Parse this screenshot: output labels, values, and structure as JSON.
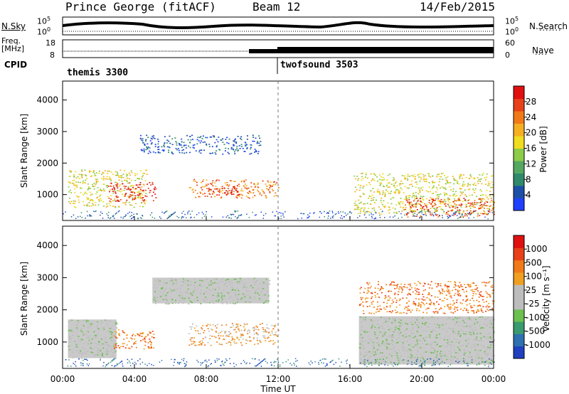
{
  "header": {
    "station": "Prince George (fitACF)",
    "beam": "Beam 12",
    "date": "14/Feb/2015"
  },
  "side_labels": {
    "nsky": "N.Sky",
    "freq_line1": "Freq.",
    "freq_line2": "[MHz]",
    "cpid": "CPID",
    "nsearch": "N.Search",
    "nave": "Nave"
  },
  "strip_ticks": {
    "noise_left_top": "10^5",
    "noise_left_bottom": "10^0",
    "noise_right_top": "10^5",
    "noise_right_bottom": "10^0",
    "freq_left_top": "18",
    "freq_left_bottom": "8",
    "nave_right_top": "60",
    "nave_right_bottom": "0"
  },
  "cpid_labels": {
    "first": "themis 3300",
    "second": "twofsound 3503"
  },
  "chart_data": [
    {
      "type": "heatmap",
      "panel": "power",
      "ylabel": "Slant Range [km]",
      "ylim": [
        180,
        4600
      ],
      "yticks": [
        "1000",
        "2000",
        "3000",
        "4000"
      ],
      "xlim_hours": [
        0,
        24
      ],
      "colorbar_label": "Power [dB]",
      "colorbar_ticks": [
        "28",
        "24",
        "20",
        "16",
        "12",
        "8",
        "4"
      ],
      "colors": [
        "#2040ff",
        "#1c4fa8",
        "#2e8a6a",
        "#55a860",
        "#8ccc48",
        "#f0dc20",
        "#f4b020",
        "#f07a18",
        "#e84018",
        "#e01010"
      ],
      "echo_regions": [
        {
          "t0": 0.3,
          "t1": 4.7,
          "r0": 600,
          "r1": 1800,
          "level": 5
        },
        {
          "t0": 2.5,
          "t1": 5.2,
          "r0": 800,
          "r1": 1400,
          "level": 9
        },
        {
          "t0": 4.3,
          "t1": 11.0,
          "r0": 2300,
          "r1": 2900,
          "level": 1
        },
        {
          "t0": 7.0,
          "t1": 12.0,
          "r0": 900,
          "r1": 1500,
          "level": 7
        },
        {
          "t0": 8.0,
          "t1": 10.0,
          "r0": 1000,
          "r1": 1300,
          "level": 9
        },
        {
          "t0": 16.2,
          "t1": 24.0,
          "r0": 400,
          "r1": 1700,
          "level": 5
        },
        {
          "t0": 19.0,
          "t1": 24.0,
          "r0": 300,
          "r1": 900,
          "level": 8
        }
      ]
    },
    {
      "type": "heatmap",
      "panel": "velocity",
      "ylabel": "Slant Range [km]",
      "ylim": [
        180,
        4600
      ],
      "yticks": [
        "1000",
        "2000",
        "3000",
        "4000"
      ],
      "xlim_hours": [
        0,
        24
      ],
      "xticks": [
        "00:00",
        "04:00",
        "08:00",
        "12:00",
        "16:00",
        "20:00",
        "00:00"
      ],
      "xlabel": "Time UT",
      "colorbar_label": "Velocity [m s⁻¹]",
      "colorbar_ticks": [
        "1000",
        "500",
        "100",
        "25",
        "-25",
        "-100",
        "-500",
        "-1000"
      ],
      "colors": [
        "#2040c0",
        "#2e70b0",
        "#3a9a70",
        "#6cc050",
        "#bdbdbd",
        "#bdbdbd",
        "#f0a020",
        "#f07a18",
        "#e84018",
        "#e01010"
      ],
      "ground_color": "#c0c0c0",
      "echo_regions": [
        {
          "t0": 0.3,
          "t1": 3.0,
          "r0": 500,
          "r1": 1700,
          "level": 4
        },
        {
          "t0": 2.8,
          "t1": 5.1,
          "r0": 800,
          "r1": 1400,
          "level": 7
        },
        {
          "t0": 5.0,
          "t1": 11.5,
          "r0": 2200,
          "r1": 3000,
          "level": 4
        },
        {
          "t0": 7.0,
          "t1": 12.0,
          "r0": 900,
          "r1": 1600,
          "level": 6
        },
        {
          "t0": 16.5,
          "t1": 24.0,
          "r0": 300,
          "r1": 1800,
          "level": 4
        },
        {
          "t0": 16.5,
          "t1": 24.0,
          "r0": 1900,
          "r1": 2900,
          "level": 7
        }
      ]
    }
  ]
}
